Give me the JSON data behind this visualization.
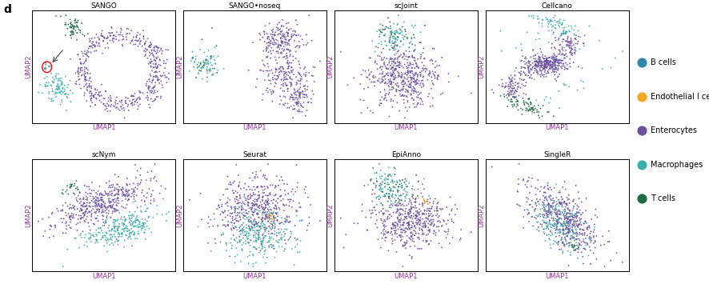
{
  "title_label": "d",
  "subplot_titles_row1": [
    "SANGO",
    "SANGO•noseq",
    "scJoint",
    "Cellcano"
  ],
  "subplot_titles_row2": [
    "scNym",
    "Seurat",
    "EpiAnno",
    "SingleR"
  ],
  "xlabel": "UMAP1",
  "ylabel": "UMAP2",
  "cell_types": [
    "B cells",
    "Endothelial I cells",
    "Enterocytes",
    "Macrophages",
    "T cells"
  ],
  "colors": {
    "B cells": "#2E86AB",
    "Endothelial I cells": "#F5A623",
    "Enterocytes": "#6B4FA0",
    "Macrophages": "#3AAFA9",
    "T cells": "#1D6B3E"
  },
  "xlabel_color": "#9B30A0",
  "ylabel_color": "#9B30A0",
  "background": "#ffffff",
  "seed": 42
}
